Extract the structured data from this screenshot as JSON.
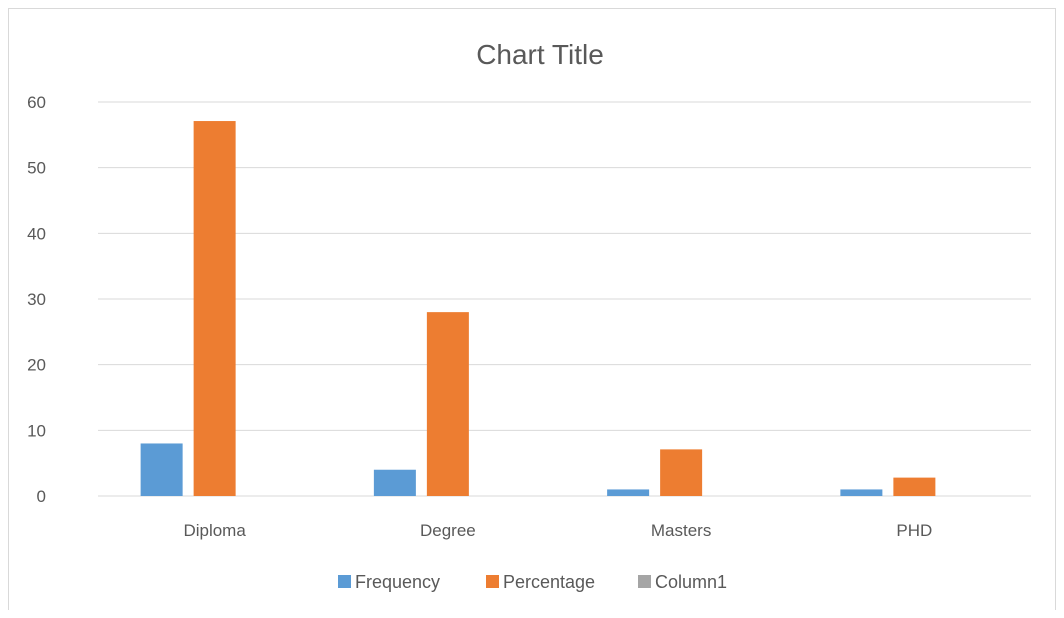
{
  "chart_data": {
    "type": "bar",
    "title": "Chart Title",
    "categories": [
      "Diploma",
      "Degree",
      "Masters",
      "PHD"
    ],
    "series": [
      {
        "name": "Frequency",
        "values": [
          8,
          4,
          1,
          1
        ],
        "color": "#5b9bd5"
      },
      {
        "name": "Percentage",
        "values": [
          57.1,
          28.0,
          7.1,
          2.8
        ],
        "color": "#ed7d31"
      },
      {
        "name": "Column1",
        "values": [
          0,
          0,
          0,
          0
        ],
        "color": "#a5a5a5"
      }
    ],
    "ylim": [
      0,
      60
    ],
    "yticks": [
      0,
      10,
      20,
      30,
      40,
      50,
      60
    ],
    "grid": true,
    "legend": "bottom"
  }
}
